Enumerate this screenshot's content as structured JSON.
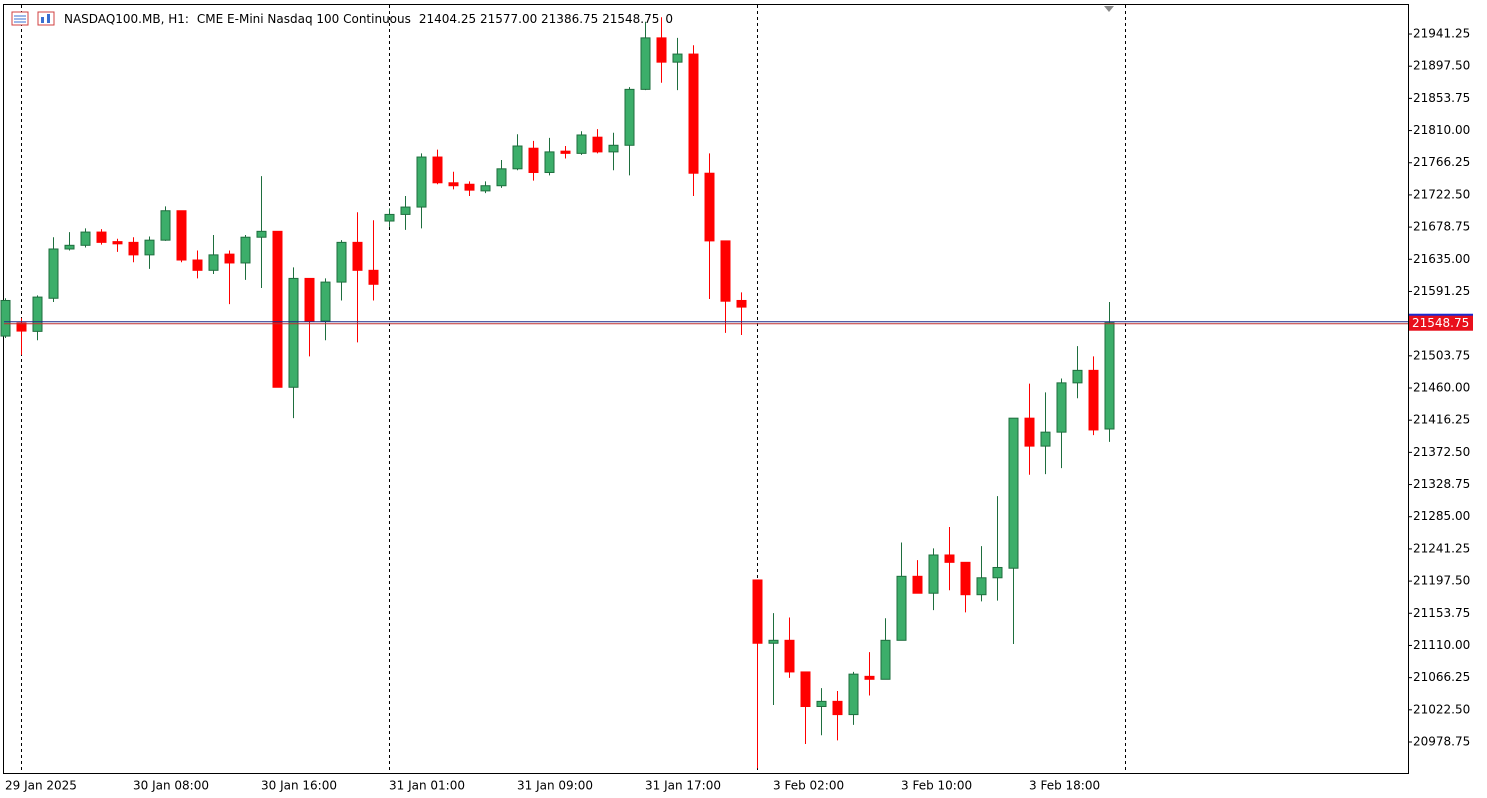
{
  "header": {
    "symbol": "NASDAQ100.MB, H1:",
    "description": "CME E-Mini Nasdaq 100 Continuous",
    "ohlc": "21404.25 21577.00 21386.75 21548.75",
    "volume": "0"
  },
  "chart_data": {
    "type": "candlestick",
    "categories": [
      "29 Jan 2025",
      null,
      null,
      null,
      null,
      null,
      null,
      null,
      "30 Jan 08:00",
      null,
      null,
      null,
      null,
      null,
      null,
      null,
      "30 Jan 16:00",
      null,
      null,
      null,
      null,
      null,
      null,
      null,
      "31 Jan 01:00",
      null,
      null,
      null,
      null,
      null,
      null,
      null,
      "31 Jan 09:00",
      null,
      null,
      null,
      null,
      null,
      null,
      null,
      "31 Jan 17:00",
      null,
      null,
      null,
      null,
      null,
      null,
      null,
      "3 Feb 02:00",
      null,
      null,
      null,
      null,
      null,
      null,
      null,
      "3 Feb 10:00",
      null,
      null,
      null,
      null,
      null,
      null,
      null,
      "3 Feb 18:00",
      null,
      null,
      null,
      null,
      null
    ],
    "open": [
      21530.6,
      21548.3,
      21537,
      21582,
      21649,
      21654,
      21672,
      21659,
      21658,
      21641,
      21661,
      21701,
      21634,
      21620,
      21642,
      21630,
      21665,
      21673,
      21461,
      21609,
      21551,
      21604,
      21658,
      21620,
      21687,
      21696,
      21706,
      21774,
      21739,
      21737,
      21728,
      21735,
      21758,
      21786,
      21753,
      21782,
      21779,
      21801,
      21781,
      21790,
      21866,
      21936,
      21903,
      21914,
      21752,
      21660,
      21579,
      21199,
      21113,
      21117,
      21074,
      21027,
      21034,
      21016,
      21068,
      21064,
      21117,
      21204,
      21181,
      21233,
      21223,
      21179,
      21202,
      21215,
      21419,
      21381,
      21400,
      21467,
      21484,
      21404.25
    ],
    "high": [
      21582,
      21555,
      21586,
      21665,
      21672,
      21677,
      21676,
      21663,
      21665,
      21666,
      21707,
      21701,
      21647,
      21668,
      21647,
      21668,
      21748,
      21673,
      21624,
      21609,
      21609,
      21661,
      21699,
      21688,
      21704,
      21721,
      21779,
      21784,
      21754,
      21741,
      21741,
      21770,
      21805,
      21796,
      21800,
      21789,
      21809,
      21812,
      21807,
      21869,
      21958,
      21964,
      21936,
      21926,
      21779,
      21660,
      21590,
      21199,
      21154,
      21148,
      21074,
      21052,
      21048,
      21074,
      21101,
      21147,
      21250,
      21226,
      21242,
      21271,
      21223,
      21245,
      21313,
      21419,
      21466,
      21454,
      21473,
      21517,
      21503,
      21577
    ],
    "low": [
      21528,
      21505,
      21525,
      21577,
      21647,
      21651,
      21655,
      21645,
      21631,
      21622,
      21660,
      21631,
      21609,
      21615,
      21574,
      21607,
      21596,
      21461,
      21419,
      21503,
      21525,
      21579,
      21522,
      21579,
      21679,
      21675,
      21677,
      21737,
      21730,
      21721,
      21725,
      21732,
      21756,
      21742,
      21749,
      21772,
      21777,
      21779,
      21756,
      21749,
      21865,
      21875,
      21865,
      21721,
      21581,
      21535,
      21532,
      20943,
      21029,
      21066,
      20976,
      20988,
      20981,
      21002,
      21042,
      21064,
      21117,
      21181,
      21158,
      21185,
      21155,
      21170,
      21171,
      21112,
      21342,
      21343,
      21351,
      21446,
      21396,
      21386.75
    ],
    "close": [
      21579,
      21537.4,
      21583.6,
      21649,
      21654,
      21672,
      21658,
      21656,
      21641,
      21661,
      21701,
      21634,
      21620,
      21641,
      21630,
      21665,
      21673,
      21461,
      21609,
      21551,
      21604,
      21658,
      21620,
      21601,
      21696,
      21706,
      21774,
      21739,
      21735,
      21729,
      21735,
      21758,
      21789,
      21753,
      21781,
      21779,
      21804,
      21781,
      21790,
      21866,
      21936,
      21903,
      21914,
      21752,
      21660,
      21578,
      21570,
      21113,
      21117,
      21074,
      21027,
      21034,
      21016,
      21071,
      21064,
      21117,
      21204,
      21181,
      21233,
      21223,
      21179,
      21202,
      21216,
      21419,
      21381,
      21400,
      21467,
      21484,
      21403,
      21548.75
    ],
    "up_color": "#3cae6a",
    "down_color": "#ff0000",
    "ylim": [
      20936.6,
      21980.7
    ],
    "yticks": [
      21941.25,
      {
        "value": 21897.5,
        "label": "21897.50"
      },
      21853.75,
      {
        "value": 21810,
        "label": "21810.00"
      },
      21766.25,
      {
        "value": 21722.5,
        "label": "21722.50"
      },
      21678.75,
      {
        "value": 21635,
        "label": "21635.00"
      },
      21591.25,
      21503.75,
      {
        "value": 21460,
        "label": "21460.00"
      },
      21416.25,
      {
        "value": 21372.5,
        "label": "21372.50"
      },
      21328.75,
      {
        "value": 21285,
        "label": "21285.00"
      },
      21241.25,
      {
        "value": 21197.5,
        "label": "21197.50"
      },
      21153.75,
      {
        "value": 21110,
        "label": "21110.00"
      },
      21066.25,
      {
        "value": 21022.5,
        "label": "21022.50"
      },
      20978.75
    ],
    "current_price": 21548.75
  }
}
